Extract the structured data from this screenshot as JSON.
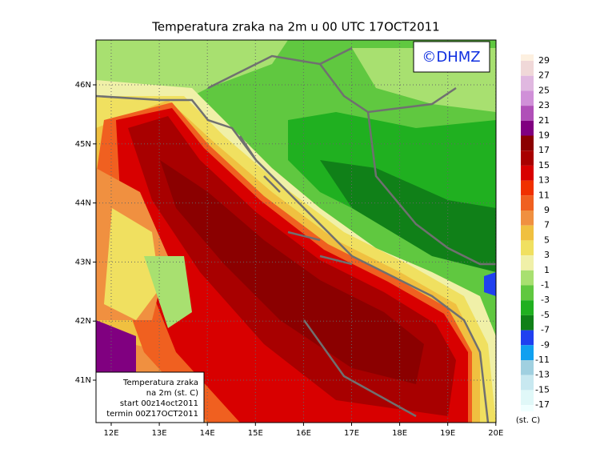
{
  "title": "Temperatura zraka na 2m u 00 UTC 17OCT2011",
  "watermark": "©DHMZ",
  "map": {
    "lat_labels": [
      "46N",
      "45N",
      "44N",
      "43N",
      "42N",
      "41N"
    ],
    "lon_labels": [
      "12E",
      "13E",
      "14E",
      "15E",
      "16E",
      "17E",
      "18E",
      "19E",
      "20E"
    ]
  },
  "colorbar": {
    "levels": [
      29,
      27,
      25,
      23,
      21,
      19,
      17,
      15,
      13,
      11,
      9,
      7,
      5,
      3,
      1,
      -1,
      -3,
      -5,
      -7,
      -9,
      -11,
      -13,
      -15,
      -17
    ],
    "colors": [
      "#fdf0e0",
      "#f0d8d8",
      "#e0b8e0",
      "#d090d8",
      "#b050b8",
      "#800080",
      "#8b0000",
      "#a80000",
      "#d80000",
      "#f03000",
      "#f06020",
      "#f09040",
      "#f0c040",
      "#f0e060",
      "#f0f0a8",
      "#a8e070",
      "#60c840",
      "#20b020",
      "#108018",
      "#2040f0",
      "#10a0f0",
      "#a0d0e0",
      "#c8e8f0",
      "#e0f8f8",
      "#f0ffff"
    ],
    "unit": "(st. C)"
  },
  "info_box": {
    "lines": [
      "Temperatura zraka",
      "na 2m (st. C)",
      "start 00z14oct2011",
      "termin 00Z17OCT2011"
    ]
  }
}
